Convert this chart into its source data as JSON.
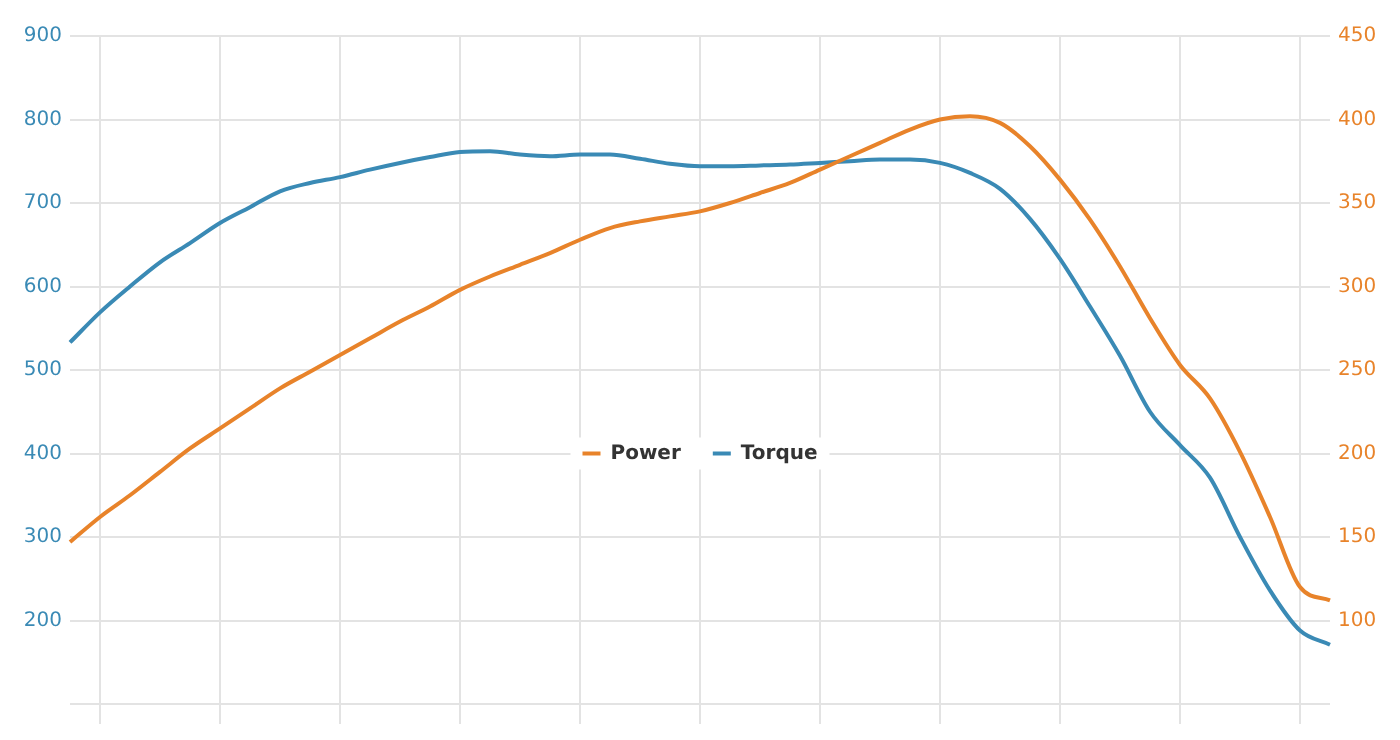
{
  "chart_data": {
    "type": "line",
    "categories": [
      null,
      null,
      null,
      null,
      null,
      null,
      null,
      null,
      null,
      null,
      null,
      null,
      null,
      null,
      null,
      null,
      null,
      null,
      null,
      null,
      null,
      null,
      null,
      null,
      null,
      null,
      null,
      null,
      null,
      null,
      null,
      null,
      null,
      null,
      null,
      null,
      null,
      null,
      null,
      null,
      null,
      null,
      null
    ],
    "series": [
      {
        "name": "Power",
        "color": "#e8832a",
        "axis": "y2",
        "values": [
          147,
          162,
          175,
          189,
          203,
          215,
          227,
          239,
          249,
          259,
          269,
          279,
          288,
          298,
          306,
          313,
          320,
          328,
          335,
          339,
          342,
          345,
          350,
          356,
          362,
          370,
          378,
          386,
          394,
          400,
          402,
          398,
          384,
          364,
          340,
          312,
          281,
          253,
          233,
          201,
          162,
          120,
          112
        ]
      },
      {
        "name": "Torque",
        "color": "#3a8ab5",
        "values": [
          533,
          569,
          600,
          629,
          652,
          676,
          695,
          714,
          724,
          731,
          740,
          748,
          755,
          761,
          762,
          758,
          756,
          758,
          758,
          753,
          747,
          744,
          744,
          745,
          746,
          748,
          750,
          752,
          752,
          748,
          736,
          717,
          681,
          633,
          576,
          517,
          450,
          410,
          371,
          300,
          236,
          188,
          171
        ]
      }
    ],
    "ylim": [
      100,
      900
    ],
    "yticks": [
      {
        "value": 100,
        "label": null
      },
      200,
      300,
      400,
      500,
      600,
      700,
      800,
      900
    ],
    "y2lim": [
      50,
      450
    ],
    "y2ticks": [
      100,
      150,
      200,
      250,
      300,
      350,
      400,
      450
    ],
    "grid": true,
    "legend": "center",
    "marker": "none",
    "line_style": "solid",
    "tick_labels": "y"
  }
}
